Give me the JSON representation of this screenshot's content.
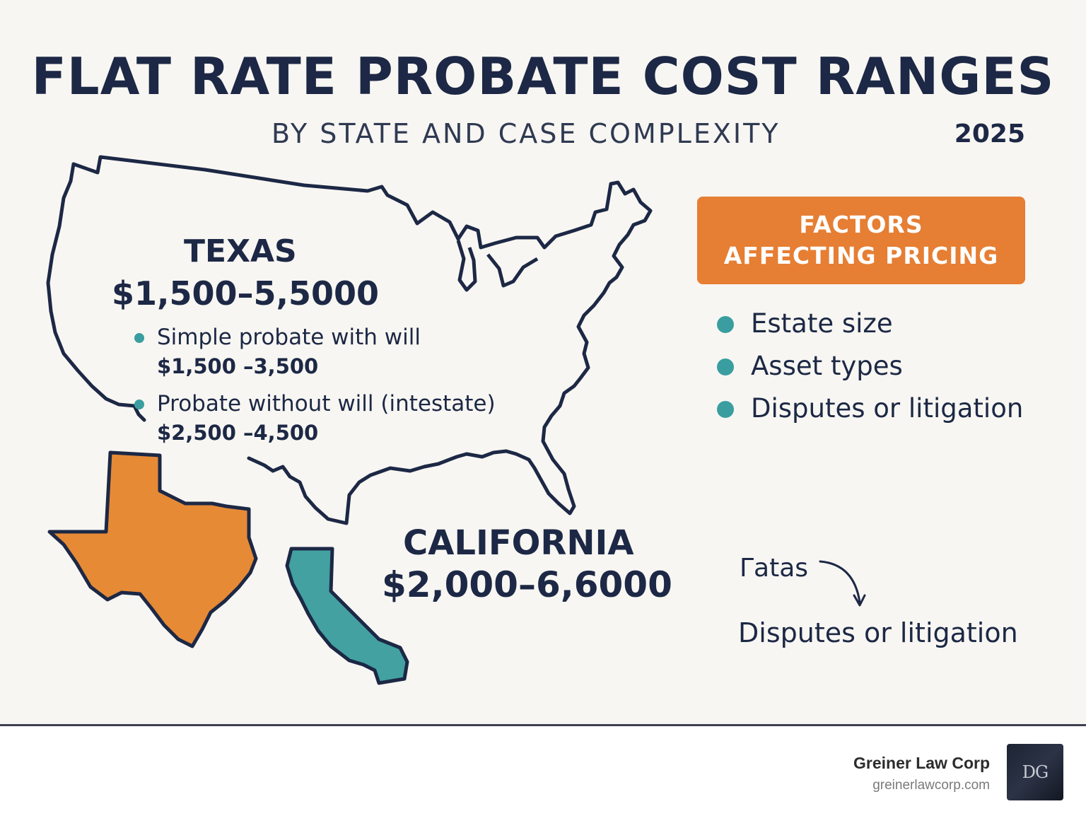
{
  "header": {
    "title": "FLAT RATE PROBATE COST RANGES",
    "subtitle": "BY STATE AND CASE COMPLEXITY",
    "year": "2025"
  },
  "texas": {
    "name": "TEXAS",
    "range": "$1,500–5,5000",
    "items": [
      {
        "label": "Simple probate with will",
        "price": "$1,500 –3,500"
      },
      {
        "label": "Probate without will (intestate)",
        "price": "$2,500 –4,500"
      }
    ]
  },
  "california": {
    "name": "CALIFORNIA",
    "range": "$2,000–6,6000"
  },
  "factors": {
    "heading": "FACTORS AFFECTING PRICING",
    "items": [
      "Estate size",
      "Asset types",
      "Disputes or litigation"
    ]
  },
  "note": {
    "word": "Γatas",
    "line": "Disputes or litigation"
  },
  "footer": {
    "company": "Greiner Law Corp",
    "url": "greinerlawcorp.com",
    "logo_monogram": "DG"
  },
  "colors": {
    "navy": "#1c2845",
    "orange": "#e67e33",
    "teal": "#3a9ea0",
    "background": "#f8f6f2"
  }
}
